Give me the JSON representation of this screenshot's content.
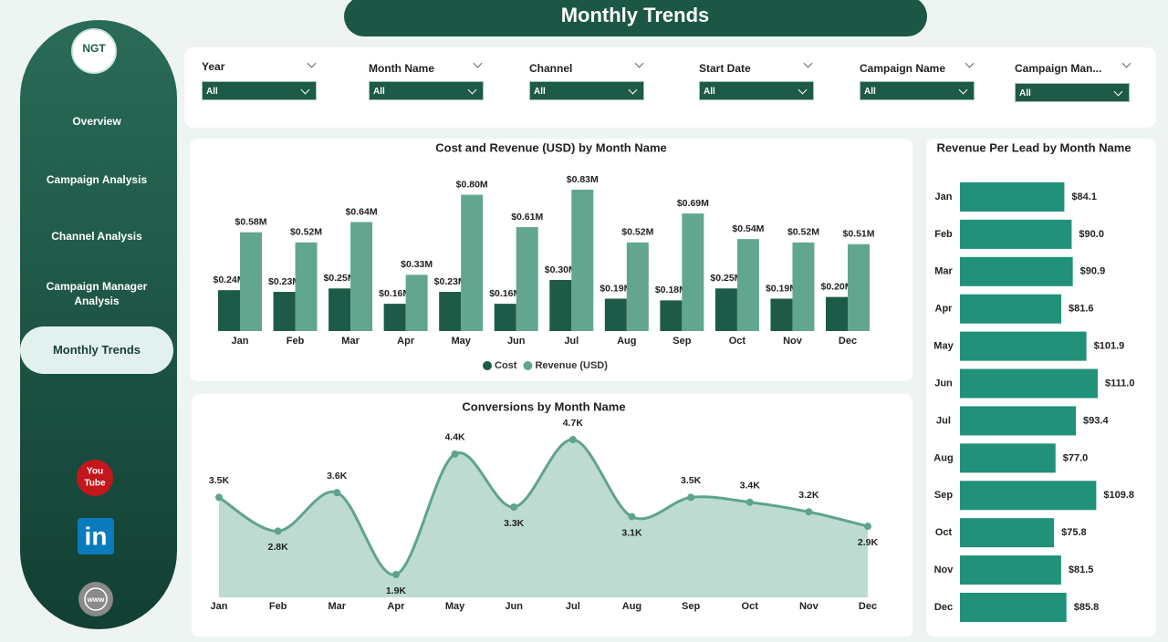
{
  "header": {
    "title": "Monthly Trends"
  },
  "logo": "NGT",
  "nav": {
    "items": [
      "Overview",
      "Campaign Analysis",
      "Channel Analysis",
      "Campaign Manager Analysis",
      "Monthly Trends"
    ],
    "active": 4
  },
  "social": {
    "youtube": [
      "You",
      "Tube"
    ],
    "linkedin": "in",
    "web": "www"
  },
  "filters": [
    {
      "label": "Year",
      "value": "All"
    },
    {
      "label": "Month Name",
      "value": "All"
    },
    {
      "label": "Channel",
      "value": "All"
    },
    {
      "label": "Start Date",
      "value": "All"
    },
    {
      "label": "Campaign Name",
      "value": "All"
    },
    {
      "label": "Campaign Man...",
      "value": "All"
    }
  ],
  "chart_data": [
    {
      "type": "bar",
      "title": "Cost and Revenue (USD) by Month Name",
      "categories": [
        "Jan",
        "Feb",
        "Mar",
        "Apr",
        "May",
        "Jun",
        "Jul",
        "Aug",
        "Sep",
        "Oct",
        "Nov",
        "Dec"
      ],
      "series": [
        {
          "name": "Cost",
          "color": "#1d5a48",
          "values": [
            0.24,
            0.23,
            0.25,
            0.16,
            0.23,
            0.16,
            0.3,
            0.19,
            0.18,
            0.25,
            0.19,
            0.2
          ],
          "value_labels": [
            "$0.24M",
            "$0.23M",
            "$0.25M",
            "$0.16M",
            "$0.23M",
            "$0.16M",
            "$0.30M",
            "$0.19M",
            "$0.18M",
            "$0.25M",
            "$0.19M",
            "$0.20M"
          ]
        },
        {
          "name": "Revenue (USD)",
          "color": "#62a690",
          "values": [
            0.58,
            0.52,
            0.64,
            0.33,
            0.8,
            0.61,
            0.83,
            0.52,
            0.69,
            0.54,
            0.52,
            0.51
          ],
          "value_labels": [
            "$0.58M",
            "$0.52M",
            "$0.64M",
            "$0.33M",
            "$0.80M",
            "$0.61M",
            "$0.83M",
            "$0.52M",
            "$0.69M",
            "$0.54M",
            "$0.52M",
            "$0.51M"
          ]
        }
      ],
      "legend": "bottom"
    },
    {
      "type": "area",
      "title": "Conversions by Month Name",
      "categories": [
        "Jan",
        "Feb",
        "Mar",
        "Apr",
        "May",
        "Jun",
        "Jul",
        "Aug",
        "Sep",
        "Oct",
        "Nov",
        "Dec"
      ],
      "values": [
        3.5,
        2.8,
        3.6,
        1.9,
        4.4,
        3.3,
        4.7,
        3.1,
        3.5,
        3.4,
        3.2,
        2.9
      ],
      "value_labels": [
        "3.5K",
        "2.8K",
        "3.6K",
        "1.9K",
        "4.4K",
        "3.3K",
        "4.7K",
        "3.1K",
        "3.5K",
        "3.4K",
        "3.2K",
        "2.9K"
      ],
      "color": "#5fa38d",
      "fill": "#bddbd1"
    },
    {
      "type": "hbar",
      "title": "Revenue Per Lead by Month Name",
      "categories": [
        "Jan",
        "Feb",
        "Mar",
        "Apr",
        "May",
        "Jun",
        "Jul",
        "Aug",
        "Sep",
        "Oct",
        "Nov",
        "Dec"
      ],
      "values": [
        84.1,
        90.0,
        90.9,
        81.6,
        101.9,
        111.0,
        93.4,
        77.0,
        109.8,
        75.8,
        81.5,
        85.8
      ],
      "value_labels": [
        "$84.1",
        "$90.0",
        "$90.9",
        "$81.6",
        "$101.9",
        "$111.0",
        "$93.4",
        "$77.0",
        "$109.8",
        "$75.8",
        "$81.5",
        "$85.8"
      ],
      "color": "#21917a"
    }
  ]
}
